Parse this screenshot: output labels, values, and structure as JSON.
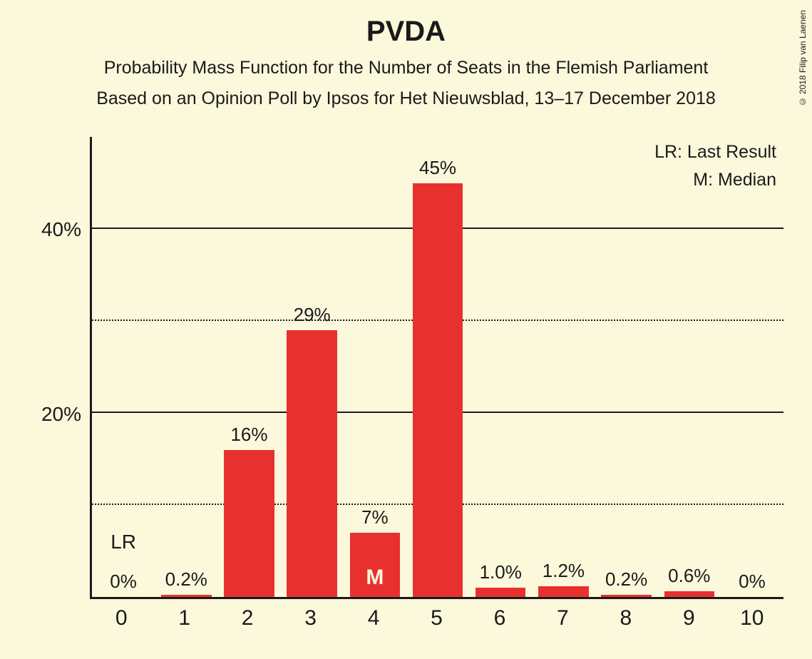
{
  "copyright": "© 2018 Filip van Laenen",
  "title": "PVDA",
  "subtitle1": "Probability Mass Function for the Number of Seats in the Flemish Parliament",
  "subtitle2": "Based on an Opinion Poll by Ipsos for Het Nieuwsblad, 13–17 December 2018",
  "legend": {
    "lr": "LR: Last Result",
    "m": "M: Median"
  },
  "chart": {
    "type": "bar",
    "bar_color": "#e8312f",
    "background_color": "#fbf8dc",
    "text_color": "#1a1a1a",
    "grid_color": "#1a1a1a",
    "ymax": 50,
    "y_solid_ticks": [
      20,
      40
    ],
    "y_dotted_ticks": [
      10,
      30
    ],
    "y_labels": [
      {
        "v": 20,
        "text": "20%"
      },
      {
        "v": 40,
        "text": "40%"
      }
    ],
    "categories": [
      "0",
      "1",
      "2",
      "3",
      "4",
      "5",
      "6",
      "7",
      "8",
      "9",
      "10"
    ],
    "values": [
      0,
      0.2,
      16,
      29,
      7,
      45,
      1.0,
      1.2,
      0.2,
      0.6,
      0
    ],
    "value_labels": [
      "0%",
      "0.2%",
      "16%",
      "29%",
      "7%",
      "45%",
      "1.0%",
      "1.2%",
      "0.2%",
      "0.6%",
      "0%"
    ],
    "lr_index": 0,
    "lr_text": "LR",
    "median_index": 4,
    "median_text": "M",
    "bar_width_pct": 80,
    "barlabel_fontsize": 26,
    "xlabel_fontsize": 30,
    "ylabel_fontsize": 28,
    "title_fontsize": 40,
    "subtitle_fontsize": 25
  }
}
